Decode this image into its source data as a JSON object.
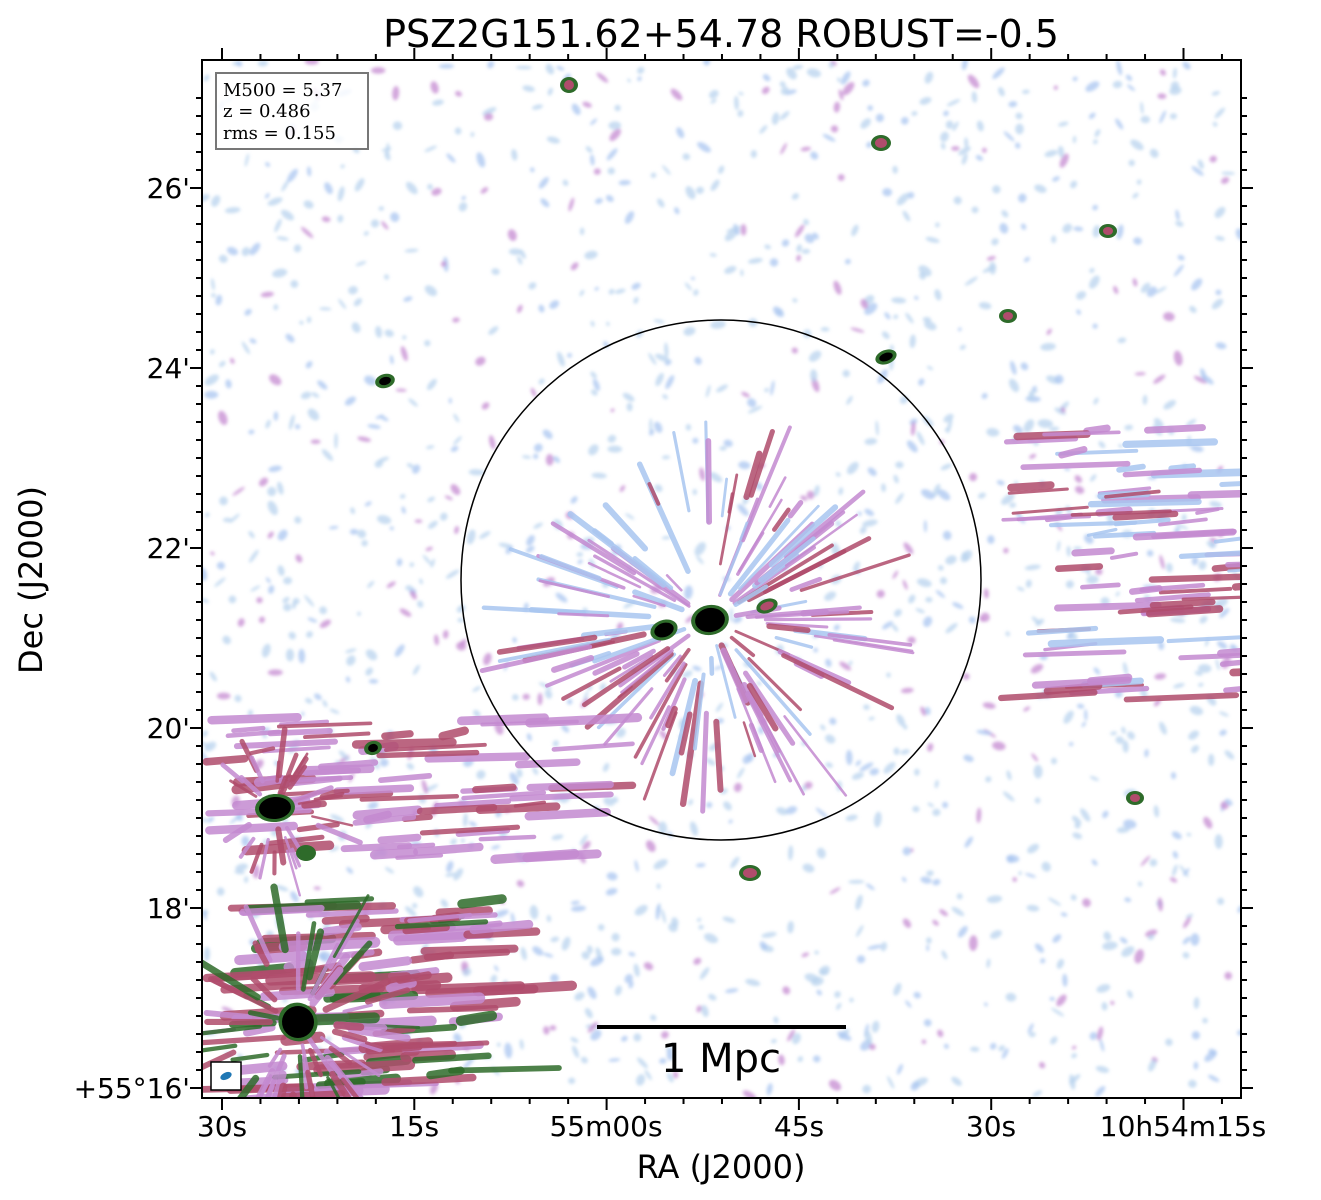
{
  "title": "PSZ2G151.62+54.78 ROBUST=-0.5",
  "x_axis": {
    "label": "RA (J2000)",
    "ticks": [
      "30s",
      "15s",
      "55m00s",
      "45s",
      "30s",
      "10h54m15s"
    ]
  },
  "y_axis": {
    "label": "Dec (J2000)",
    "ticks": [
      "26'",
      "24'",
      "22'",
      "20'",
      "18'",
      "+55°16'"
    ]
  },
  "info_box": {
    "m500": "M500 = 5.37",
    "z": "z = 0.486",
    "rms": "rms = 0.155"
  },
  "scale_bar": {
    "label": "1 Mpc"
  },
  "colors": {
    "faint": "#b8d3ee",
    "lightblue": "#a9c6f0",
    "mid": "#c48ad0",
    "strong": "#b04c6c",
    "brightest": "#2e6b2a",
    "source": "#000000",
    "beam": "#1f77b4"
  }
}
